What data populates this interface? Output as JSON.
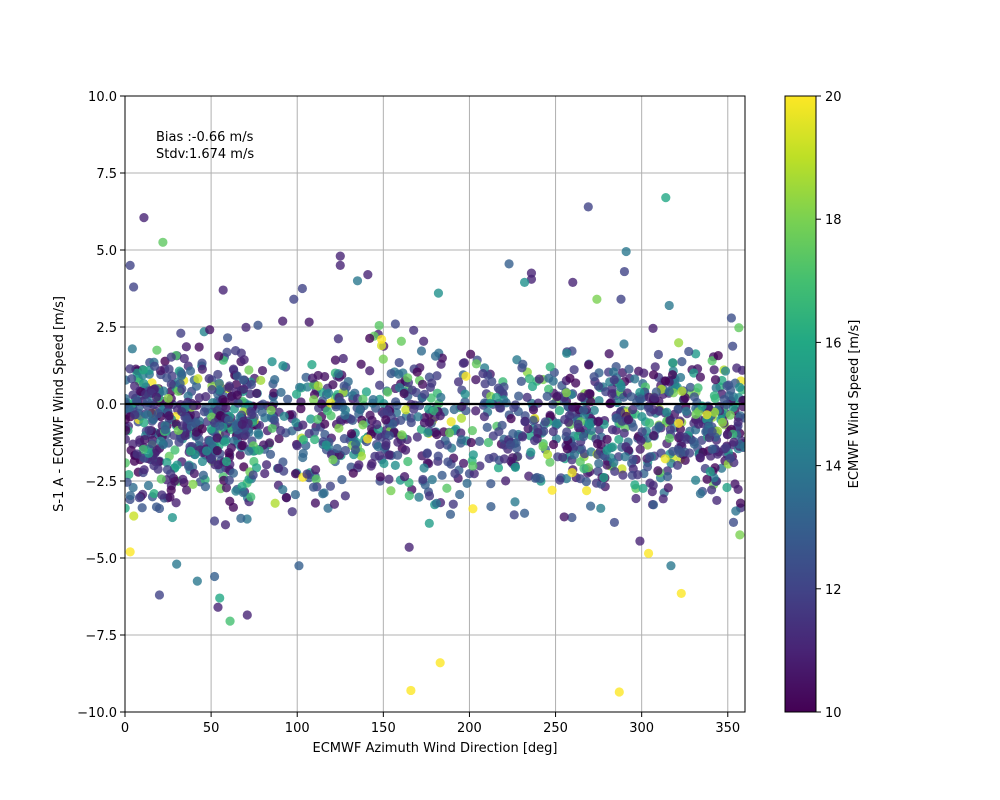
{
  "chart_data": {
    "type": "scatter",
    "xlabel": "ECMWF Azimuth Wind Direction [deg]",
    "ylabel": "S-1 A - ECMWF Wind Speed [m/s]",
    "xlim": [
      0,
      360
    ],
    "ylim": [
      -10,
      10
    ],
    "x_ticks": [
      0,
      50,
      100,
      150,
      200,
      250,
      300,
      350
    ],
    "x_tick_labels": [
      "0",
      "50",
      "100",
      "150",
      "200",
      "250",
      "300",
      "350"
    ],
    "y_ticks": [
      -10,
      -7.5,
      -5,
      -2.5,
      0,
      2.5,
      5,
      7.5,
      10
    ],
    "y_tick_labels": [
      "−10.0",
      "−7.5",
      "−5.0",
      "−2.5",
      "0.0",
      "2.5",
      "5.0",
      "7.5",
      "10.0"
    ],
    "grid": true,
    "reference_line": {
      "y": 0,
      "color": "#000000"
    },
    "annotations": [
      "Bias :-0.66 m/s",
      "Stdv:1.674 m/s"
    ],
    "colormap": "viridis",
    "colorbar": {
      "label": "ECMWF Wind Speed [m/s]",
      "range": [
        10,
        20
      ],
      "ticks": [
        10,
        12,
        14,
        16,
        18,
        20
      ],
      "tick_labels": [
        "10",
        "12",
        "14",
        "16",
        "18",
        "20"
      ]
    },
    "outlier_points": [
      {
        "x": 11,
        "y": 6.05,
        "c": 11
      },
      {
        "x": 22,
        "y": 5.25,
        "c": 17.5
      },
      {
        "x": 3,
        "y": 4.5,
        "c": 12
      },
      {
        "x": 5,
        "y": 3.8,
        "c": 12
      },
      {
        "x": 125,
        "y": 4.8,
        "c": 11
      },
      {
        "x": 125,
        "y": 4.5,
        "c": 11
      },
      {
        "x": 141,
        "y": 4.2,
        "c": 11
      },
      {
        "x": 135,
        "y": 4.0,
        "c": 14
      },
      {
        "x": 103,
        "y": 3.75,
        "c": 12
      },
      {
        "x": 98,
        "y": 3.4,
        "c": 12
      },
      {
        "x": 57,
        "y": 3.7,
        "c": 11
      },
      {
        "x": 182,
        "y": 3.6,
        "c": 15
      },
      {
        "x": 149,
        "y": 2.1,
        "c": 20
      },
      {
        "x": 223,
        "y": 4.55,
        "c": 13
      },
      {
        "x": 236,
        "y": 4.25,
        "c": 11
      },
      {
        "x": 236,
        "y": 4.05,
        "c": 11
      },
      {
        "x": 232,
        "y": 3.95,
        "c": 15
      },
      {
        "x": 260,
        "y": 3.95,
        "c": 11
      },
      {
        "x": 269,
        "y": 6.4,
        "c": 12
      },
      {
        "x": 314,
        "y": 6.7,
        "c": 16
      },
      {
        "x": 291,
        "y": 4.95,
        "c": 14
      },
      {
        "x": 290,
        "y": 4.3,
        "c": 12
      },
      {
        "x": 274,
        "y": 3.4,
        "c": 18
      },
      {
        "x": 288,
        "y": 3.4,
        "c": 12
      },
      {
        "x": 316,
        "y": 3.2,
        "c": 14
      },
      {
        "x": 20,
        "y": -6.2,
        "c": 12
      },
      {
        "x": 30,
        "y": -5.2,
        "c": 14
      },
      {
        "x": 42,
        "y": -5.75,
        "c": 14
      },
      {
        "x": 52,
        "y": -5.6,
        "c": 13
      },
      {
        "x": 54,
        "y": -6.6,
        "c": 11
      },
      {
        "x": 55,
        "y": -6.3,
        "c": 16
      },
      {
        "x": 61,
        "y": -7.05,
        "c": 17
      },
      {
        "x": 71,
        "y": -6.85,
        "c": 11
      },
      {
        "x": 3,
        "y": -4.8,
        "c": 20
      },
      {
        "x": 101,
        "y": -5.25,
        "c": 13
      },
      {
        "x": 166,
        "y": -9.3,
        "c": 20
      },
      {
        "x": 183,
        "y": -8.4,
        "c": 20
      },
      {
        "x": 287,
        "y": -9.35,
        "c": 20
      },
      {
        "x": 323,
        "y": -6.15,
        "c": 20
      },
      {
        "x": 304,
        "y": -4.85,
        "c": 20
      },
      {
        "x": 317,
        "y": -5.25,
        "c": 14
      },
      {
        "x": 165,
        "y": -4.65,
        "c": 11
      },
      {
        "x": 357,
        "y": -4.25,
        "c": 18
      },
      {
        "x": 299,
        "y": -4.45,
        "c": 11
      },
      {
        "x": 226,
        "y": -3.6,
        "c": 12
      },
      {
        "x": 248,
        "y": -2.8,
        "c": 20
      },
      {
        "x": 202,
        "y": -3.4,
        "c": 20
      },
      {
        "x": 198,
        "y": 0.9,
        "c": 20
      }
    ],
    "bulk_distribution": {
      "description_note": "dense cloud of points centred slightly below zero across all directions, sparser between 100 and 250 deg",
      "center_y": -0.66,
      "spread_y": 1.2
    }
  }
}
